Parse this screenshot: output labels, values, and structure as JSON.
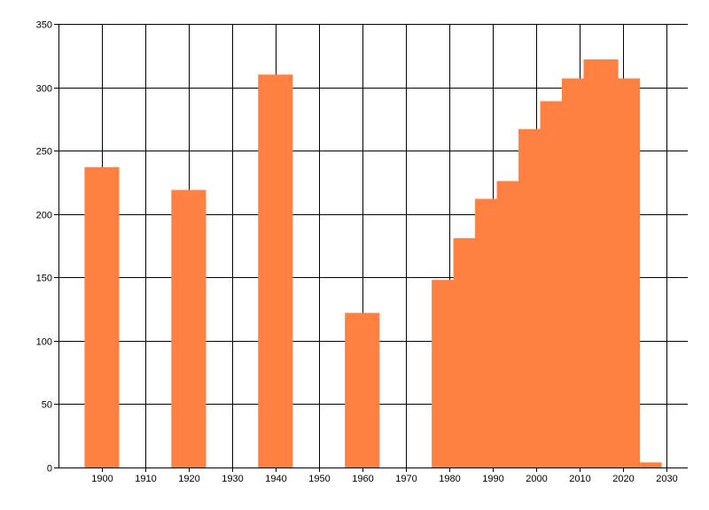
{
  "chart_data": {
    "type": "bar",
    "x": [
      1900,
      1920,
      1940,
      1960,
      1980,
      1985,
      1990,
      1995,
      2000,
      2005,
      2010,
      2015,
      2020,
      2025
    ],
    "values": [
      237,
      219,
      310,
      122,
      148,
      181,
      212,
      226,
      267,
      289,
      307,
      322,
      307,
      4
    ],
    "xlim": [
      1890,
      2035
    ],
    "ylim": [
      0,
      350
    ],
    "xticks": [
      1900,
      1910,
      1920,
      1930,
      1940,
      1950,
      1960,
      1970,
      1980,
      1990,
      2000,
      2010,
      2020,
      2030
    ],
    "yticks": [
      0,
      50,
      100,
      150,
      200,
      250,
      300,
      350
    ],
    "grid": true,
    "bar_color": "#FF8040",
    "title": "",
    "xlabel": "",
    "ylabel": ""
  }
}
